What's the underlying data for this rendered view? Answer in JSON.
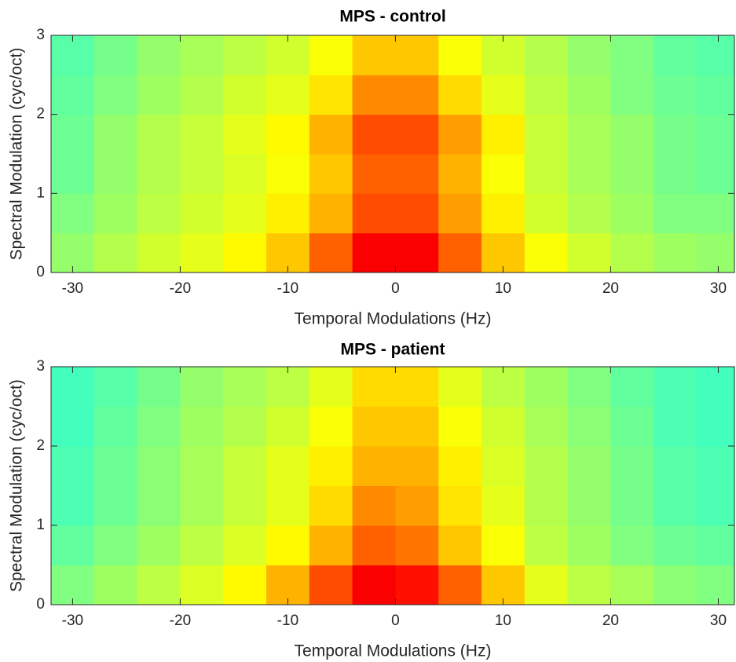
{
  "chart_data": [
    {
      "type": "heatmap",
      "title": "MPS - control",
      "xlabel": "Temporal Modulations (Hz)",
      "ylabel": "Spectral Modulation (cyc/oct)",
      "xlim": [
        -32,
        31.5
      ],
      "ylim": [
        0,
        3
      ],
      "xticks": [
        -30,
        -20,
        -10,
        0,
        10,
        20,
        30
      ],
      "yticks": [
        0,
        1,
        2,
        3
      ],
      "x_edges": [
        -32,
        -28,
        -24,
        -20,
        -16,
        -12,
        -8,
        -4,
        0,
        4,
        8,
        12,
        16,
        20,
        24,
        28,
        31.5
      ],
      "y_edges": [
        0,
        0.5,
        1,
        1.5,
        2,
        2.5,
        3
      ],
      "colormap": "jet",
      "z": [
        [
          0.52,
          0.55,
          0.58,
          0.6,
          0.63,
          0.68,
          0.78,
          0.88,
          0.88,
          0.78,
          0.68,
          0.62,
          0.58,
          0.55,
          0.53,
          0.52
        ],
        [
          0.5,
          0.53,
          0.56,
          0.58,
          0.6,
          0.64,
          0.7,
          0.8,
          0.8,
          0.72,
          0.64,
          0.58,
          0.55,
          0.53,
          0.5,
          0.5
        ],
        [
          0.48,
          0.52,
          0.55,
          0.57,
          0.59,
          0.62,
          0.68,
          0.78,
          0.78,
          0.7,
          0.62,
          0.57,
          0.54,
          0.52,
          0.49,
          0.48
        ],
        [
          0.48,
          0.52,
          0.55,
          0.57,
          0.6,
          0.63,
          0.7,
          0.8,
          0.8,
          0.72,
          0.64,
          0.57,
          0.54,
          0.52,
          0.49,
          0.48
        ],
        [
          0.47,
          0.5,
          0.53,
          0.55,
          0.58,
          0.6,
          0.65,
          0.74,
          0.74,
          0.66,
          0.6,
          0.56,
          0.53,
          0.5,
          0.48,
          0.47
        ],
        [
          0.46,
          0.49,
          0.52,
          0.54,
          0.56,
          0.58,
          0.62,
          0.68,
          0.68,
          0.62,
          0.58,
          0.55,
          0.52,
          0.5,
          0.47,
          0.46
        ]
      ]
    },
    {
      "type": "heatmap",
      "title": "MPS - patient",
      "xlabel": "Temporal Modulations (Hz)",
      "ylabel": "Spectral Modulation (cyc/oct)",
      "xlim": [
        -32,
        31.5
      ],
      "ylim": [
        0,
        3
      ],
      "xticks": [
        -30,
        -20,
        -10,
        0,
        10,
        20,
        30
      ],
      "yticks": [
        0,
        1,
        2,
        3
      ],
      "x_edges": [
        -32,
        -28,
        -24,
        -20,
        -16,
        -12,
        -8,
        -4,
        0,
        4,
        8,
        12,
        16,
        20,
        24,
        28,
        31.5
      ],
      "y_edges": [
        0,
        0.5,
        1,
        1.5,
        2,
        2.5,
        3
      ],
      "colormap": "jet",
      "z": [
        [
          0.5,
          0.53,
          0.56,
          0.59,
          0.63,
          0.7,
          0.8,
          0.88,
          0.86,
          0.78,
          0.68,
          0.6,
          0.56,
          0.54,
          0.51,
          0.5
        ],
        [
          0.47,
          0.5,
          0.53,
          0.56,
          0.59,
          0.63,
          0.7,
          0.78,
          0.76,
          0.68,
          0.62,
          0.56,
          0.53,
          0.5,
          0.48,
          0.47
        ],
        [
          0.45,
          0.48,
          0.51,
          0.54,
          0.57,
          0.6,
          0.66,
          0.74,
          0.72,
          0.65,
          0.6,
          0.55,
          0.52,
          0.49,
          0.46,
          0.45
        ],
        [
          0.45,
          0.48,
          0.51,
          0.54,
          0.57,
          0.6,
          0.64,
          0.7,
          0.7,
          0.64,
          0.59,
          0.55,
          0.52,
          0.49,
          0.46,
          0.45
        ],
        [
          0.44,
          0.47,
          0.5,
          0.53,
          0.55,
          0.58,
          0.62,
          0.68,
          0.68,
          0.62,
          0.58,
          0.54,
          0.51,
          0.48,
          0.45,
          0.44
        ],
        [
          0.44,
          0.46,
          0.49,
          0.52,
          0.54,
          0.56,
          0.6,
          0.66,
          0.66,
          0.6,
          0.56,
          0.53,
          0.5,
          0.47,
          0.45,
          0.44
        ]
      ]
    }
  ]
}
